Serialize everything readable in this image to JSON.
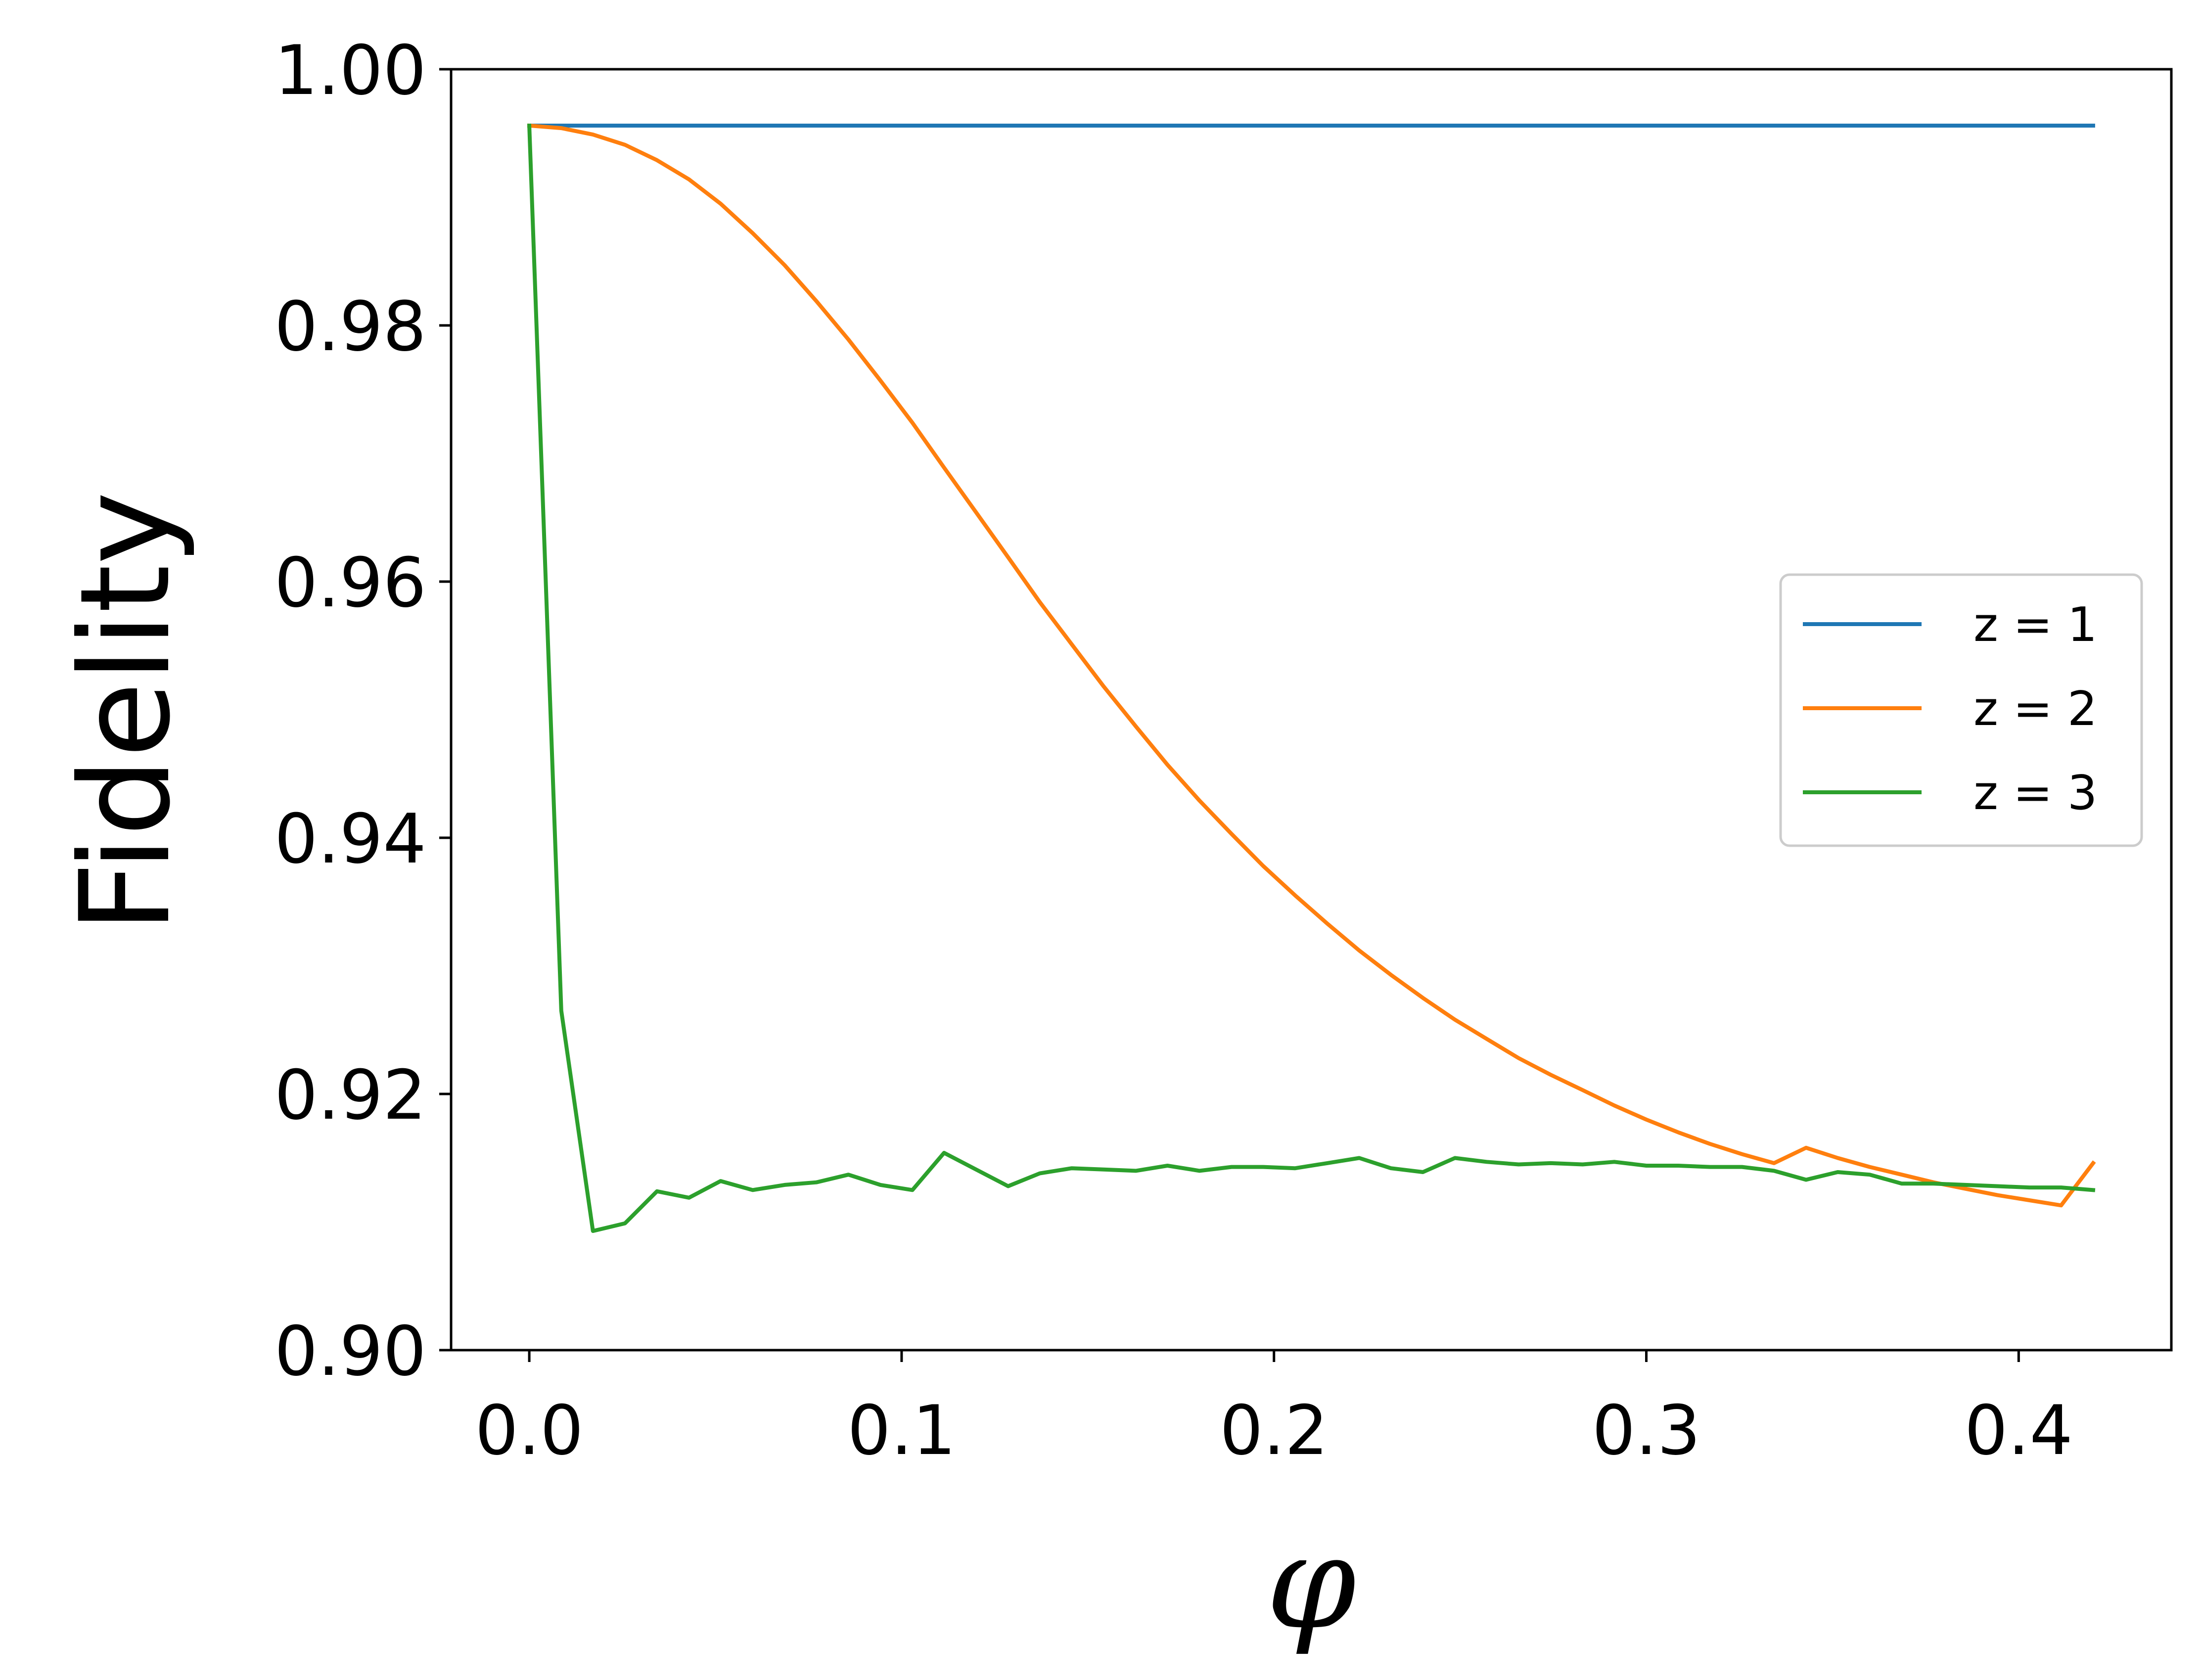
{
  "chart_data": {
    "type": "line",
    "title": "",
    "xlabel": "φ",
    "ylabel": "Fidelity",
    "xlim": [
      -0.021,
      0.441
    ],
    "ylim": [
      0.9,
      1.0
    ],
    "xticks": [
      0.0,
      0.1,
      0.2,
      0.3,
      0.4
    ],
    "xtick_labels": [
      "0.0",
      "0.1",
      "0.2",
      "0.3",
      "0.4"
    ],
    "yticks": [
      0.9,
      0.92,
      0.94,
      0.96,
      0.98,
      1.0
    ],
    "ytick_labels": [
      "0.90",
      "0.92",
      "0.94",
      "0.96",
      "0.98",
      "1.00"
    ],
    "grid": false,
    "legend_position": "center-right",
    "x": [
      0.0,
      0.0086,
      0.0171,
      0.0257,
      0.0343,
      0.0429,
      0.0514,
      0.06,
      0.0686,
      0.0771,
      0.0857,
      0.0943,
      0.1029,
      0.1114,
      0.12,
      0.1286,
      0.1371,
      0.1457,
      0.1543,
      0.1629,
      0.1714,
      0.18,
      0.1886,
      0.1971,
      0.2057,
      0.2143,
      0.2229,
      0.2314,
      0.24,
      0.2486,
      0.2571,
      0.2657,
      0.2743,
      0.2829,
      0.2914,
      0.3,
      0.3086,
      0.3171,
      0.3257,
      0.3343,
      0.3429,
      0.3514,
      0.36,
      0.3686,
      0.3771,
      0.3857,
      0.3943,
      0.4029,
      0.4114,
      0.42
    ],
    "series": [
      {
        "name": "z = 1",
        "color": "#1f77b4",
        "values": [
          0.9956,
          0.9956,
          0.9956,
          0.9956,
          0.9956,
          0.9956,
          0.9956,
          0.9956,
          0.9956,
          0.9956,
          0.9956,
          0.9956,
          0.9956,
          0.9956,
          0.9956,
          0.9956,
          0.9956,
          0.9956,
          0.9956,
          0.9956,
          0.9956,
          0.9956,
          0.9956,
          0.9956,
          0.9956,
          0.9956,
          0.9956,
          0.9956,
          0.9956,
          0.9956,
          0.9956,
          0.9956,
          0.9956,
          0.9956,
          0.9956,
          0.9956,
          0.9956,
          0.9956,
          0.9956,
          0.9956,
          0.9956,
          0.9956,
          0.9956,
          0.9956,
          0.9956,
          0.9956,
          0.9956,
          0.9956,
          0.9956,
          0.9956
        ]
      },
      {
        "name": "z = 2",
        "color": "#ff7f0e",
        "values": [
          0.9956,
          0.9954,
          0.9949,
          0.9941,
          0.9929,
          0.9914,
          0.9895,
          0.9872,
          0.9847,
          0.9819,
          0.9789,
          0.9757,
          0.9724,
          0.9689,
          0.9654,
          0.9619,
          0.9584,
          0.9551,
          0.9518,
          0.9487,
          0.9457,
          0.9429,
          0.9403,
          0.9378,
          0.9355,
          0.9333,
          0.9312,
          0.9293,
          0.9275,
          0.9258,
          0.9243,
          0.9228,
          0.9215,
          0.9203,
          0.9191,
          0.918,
          0.917,
          0.9161,
          0.9153,
          0.9146,
          0.9158,
          0.915,
          0.9143,
          0.9137,
          0.9131,
          0.9126,
          0.9121,
          0.9117,
          0.9113,
          0.9146
        ]
      },
      {
        "name": "z = 3",
        "color": "#2ca02c",
        "values": [
          0.9956,
          0.9265,
          0.9093,
          0.9099,
          0.9124,
          0.9119,
          0.9132,
          0.9125,
          0.9129,
          0.9131,
          0.9137,
          0.9129,
          0.9125,
          0.9154,
          0.9141,
          0.9128,
          0.9138,
          0.9142,
          0.9141,
          0.914,
          0.9144,
          0.914,
          0.9143,
          0.9143,
          0.9142,
          0.9146,
          0.915,
          0.9142,
          0.9139,
          0.915,
          0.9147,
          0.9145,
          0.9146,
          0.9145,
          0.9147,
          0.9144,
          0.9144,
          0.9143,
          0.9143,
          0.914,
          0.9133,
          0.9139,
          0.9137,
          0.913,
          0.913,
          0.9129,
          0.9128,
          0.9127,
          0.9127,
          0.9125
        ]
      }
    ]
  }
}
